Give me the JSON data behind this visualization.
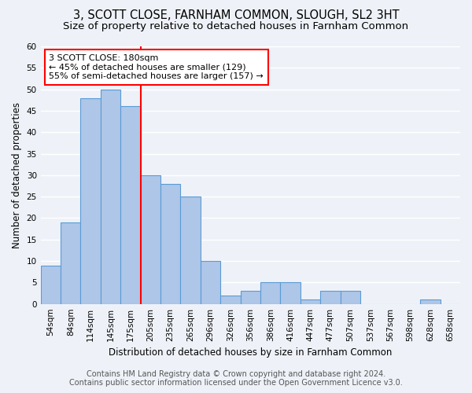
{
  "title": "3, SCOTT CLOSE, FARNHAM COMMON, SLOUGH, SL2 3HT",
  "subtitle": "Size of property relative to detached houses in Farnham Common",
  "xlabel": "Distribution of detached houses by size in Farnham Common",
  "ylabel": "Number of detached properties",
  "categories": [
    "54sqm",
    "84sqm",
    "114sqm",
    "145sqm",
    "175sqm",
    "205sqm",
    "235sqm",
    "265sqm",
    "296sqm",
    "326sqm",
    "356sqm",
    "386sqm",
    "416sqm",
    "447sqm",
    "477sqm",
    "507sqm",
    "537sqm",
    "567sqm",
    "598sqm",
    "628sqm",
    "658sqm"
  ],
  "values": [
    9,
    19,
    48,
    50,
    46,
    30,
    28,
    25,
    10,
    2,
    3,
    5,
    5,
    1,
    3,
    3,
    0,
    0,
    0,
    1,
    0
  ],
  "bar_color": "#aec6e8",
  "bar_edge_color": "#5b9bd5",
  "property_line_x": 4.5,
  "annotation_text": "3 SCOTT CLOSE: 180sqm\n← 45% of detached houses are smaller (129)\n55% of semi-detached houses are larger (157) →",
  "annotation_box_color": "white",
  "annotation_box_edge_color": "red",
  "vline_color": "red",
  "ylim": [
    0,
    60
  ],
  "yticks": [
    0,
    5,
    10,
    15,
    20,
    25,
    30,
    35,
    40,
    45,
    50,
    55,
    60
  ],
  "footer1": "Contains HM Land Registry data © Crown copyright and database right 2024.",
  "footer2": "Contains public sector information licensed under the Open Government Licence v3.0.",
  "bg_color": "#eef2f8",
  "grid_color": "white",
  "title_fontsize": 10.5,
  "subtitle_fontsize": 9.5,
  "axis_label_fontsize": 8.5,
  "tick_fontsize": 7.5,
  "annotation_fontsize": 8,
  "footer_fontsize": 7
}
